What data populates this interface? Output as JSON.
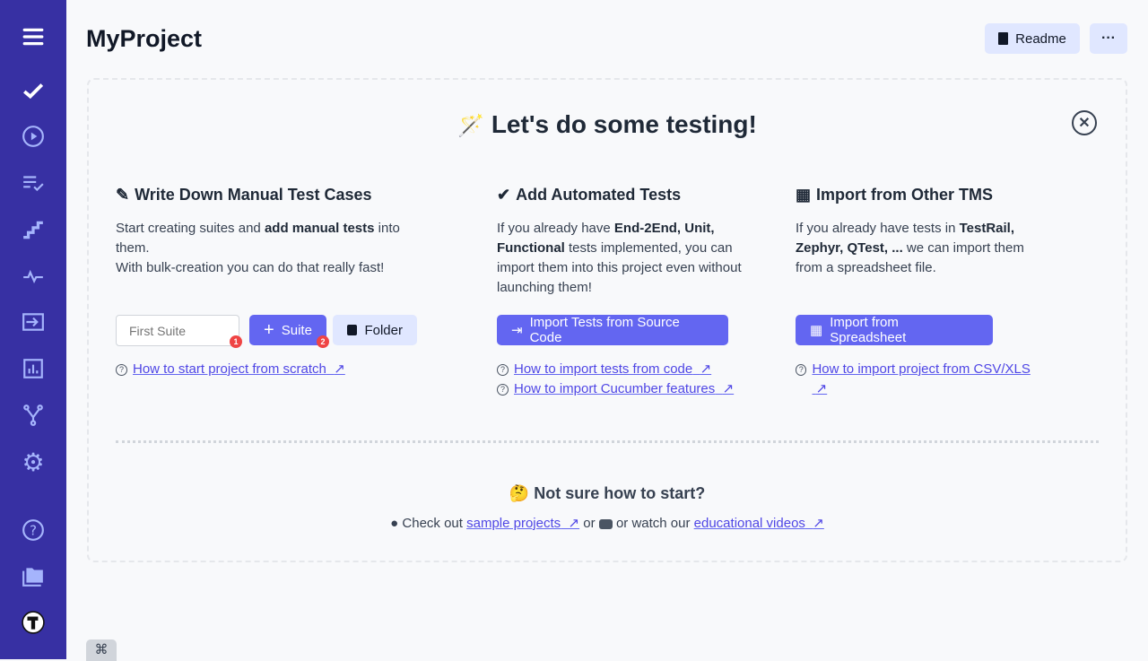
{
  "header": {
    "title": "MyProject",
    "readme_label": "Readme",
    "more_label": "···"
  },
  "sidebar": {
    "items": [
      "menu",
      "tests",
      "runs",
      "plans",
      "steps",
      "analytics",
      "import",
      "reports",
      "branches",
      "settings",
      "help",
      "projects",
      "profile"
    ],
    "active": "tests"
  },
  "main": {
    "heading_emoji": "🪄",
    "heading": "Let's do some testing!",
    "close_label": "✕",
    "manual": {
      "title": "Write Down Manual Test Cases",
      "text_1": "Start creating suites and ",
      "text_bold": "add manual tests",
      "text_2": " into them.",
      "text_3": "With bulk-creation you can do that really fast!",
      "input_placeholder": "First Suite",
      "badge_1": "1",
      "suite_label": "Suite",
      "badge_2": "2",
      "folder_label": "Folder",
      "link": "How to start project from scratch",
      "link_arrow": "↗"
    },
    "automated": {
      "title": "Add Automated Tests",
      "text_1": "If you already have ",
      "text_bold": "End-2End, Unit, Functional",
      "text_2": " tests implemented, you can import them into this project even without launching them!",
      "button": "Import Tests from Source Code",
      "link_1": "How to import tests from code",
      "link_2": "How to import Cucumber features",
      "link_arrow": "↗"
    },
    "tms": {
      "title": "Import from Other TMS",
      "text_1": "If you already have tests in ",
      "text_bold": "TestRail, Zephyr, QTest, ...",
      "text_2": " we can import them from a spreadsheet file.",
      "button": "Import from Spreadsheet",
      "link": "How to import project from CSV/XLS",
      "link_arrow": "↗"
    },
    "footer": {
      "emoji": "🤔",
      "title": "Not sure how to start?",
      "check_out": "Check out",
      "sample_link": "sample projects",
      "or_1": "or",
      "or_watch": "or watch our",
      "videos_link": "educational videos",
      "arrow": "↗"
    }
  },
  "shortcut_label": "⌘",
  "colors": {
    "sidebar": "#3730a3",
    "primary": "#6366f1",
    "light": "#e0e7ff"
  }
}
